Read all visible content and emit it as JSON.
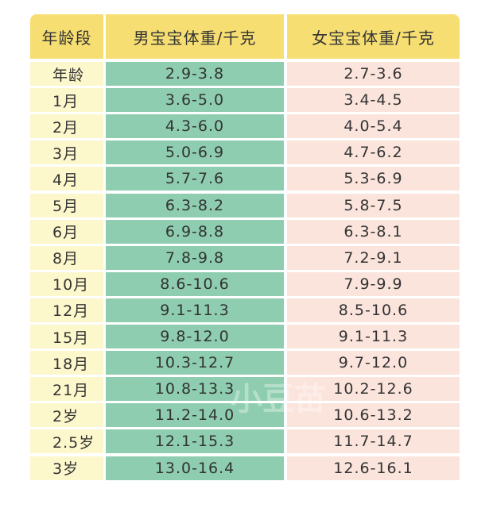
{
  "table": {
    "header": [
      "年龄段",
      "男宝宝体重/千克",
      "女宝宝体重/千克"
    ],
    "rows": [
      [
        "年龄",
        "2.9-3.8",
        "2.7-3.6"
      ],
      [
        "1月",
        "3.6-5.0",
        "3.4-4.5"
      ],
      [
        "2月",
        "4.3-6.0",
        "4.0-5.4"
      ],
      [
        "3月",
        "5.0-6.9",
        "4.7-6.2"
      ],
      [
        "4月",
        "5.7-7.6",
        "5.3-6.9"
      ],
      [
        "5月",
        "6.3-8.2",
        "5.8-7.5"
      ],
      [
        "6月",
        "6.9-8.8",
        "6.3-8.1"
      ],
      [
        "8月",
        "7.8-9.8",
        "7.2-9.1"
      ],
      [
        "10月",
        "8.6-10.6",
        "7.9-9.9"
      ],
      [
        "12月",
        "9.1-11.3",
        "8.5-10.6"
      ],
      [
        "15月",
        "9.8-12.0",
        "9.1-11.3"
      ],
      [
        "18月",
        "10.3-12.7",
        "9.7-12.0"
      ],
      [
        "21月",
        "10.8-13.3",
        "10.2-12.6"
      ],
      [
        "2岁",
        "11.2-14.0",
        "10.6-13.2"
      ],
      [
        "2.5岁",
        "12.1-15.3",
        "11.7-14.7"
      ],
      [
        "3岁",
        "13.0-16.4",
        "12.6-16.1"
      ]
    ]
  },
  "watermark": "小豆苗"
}
